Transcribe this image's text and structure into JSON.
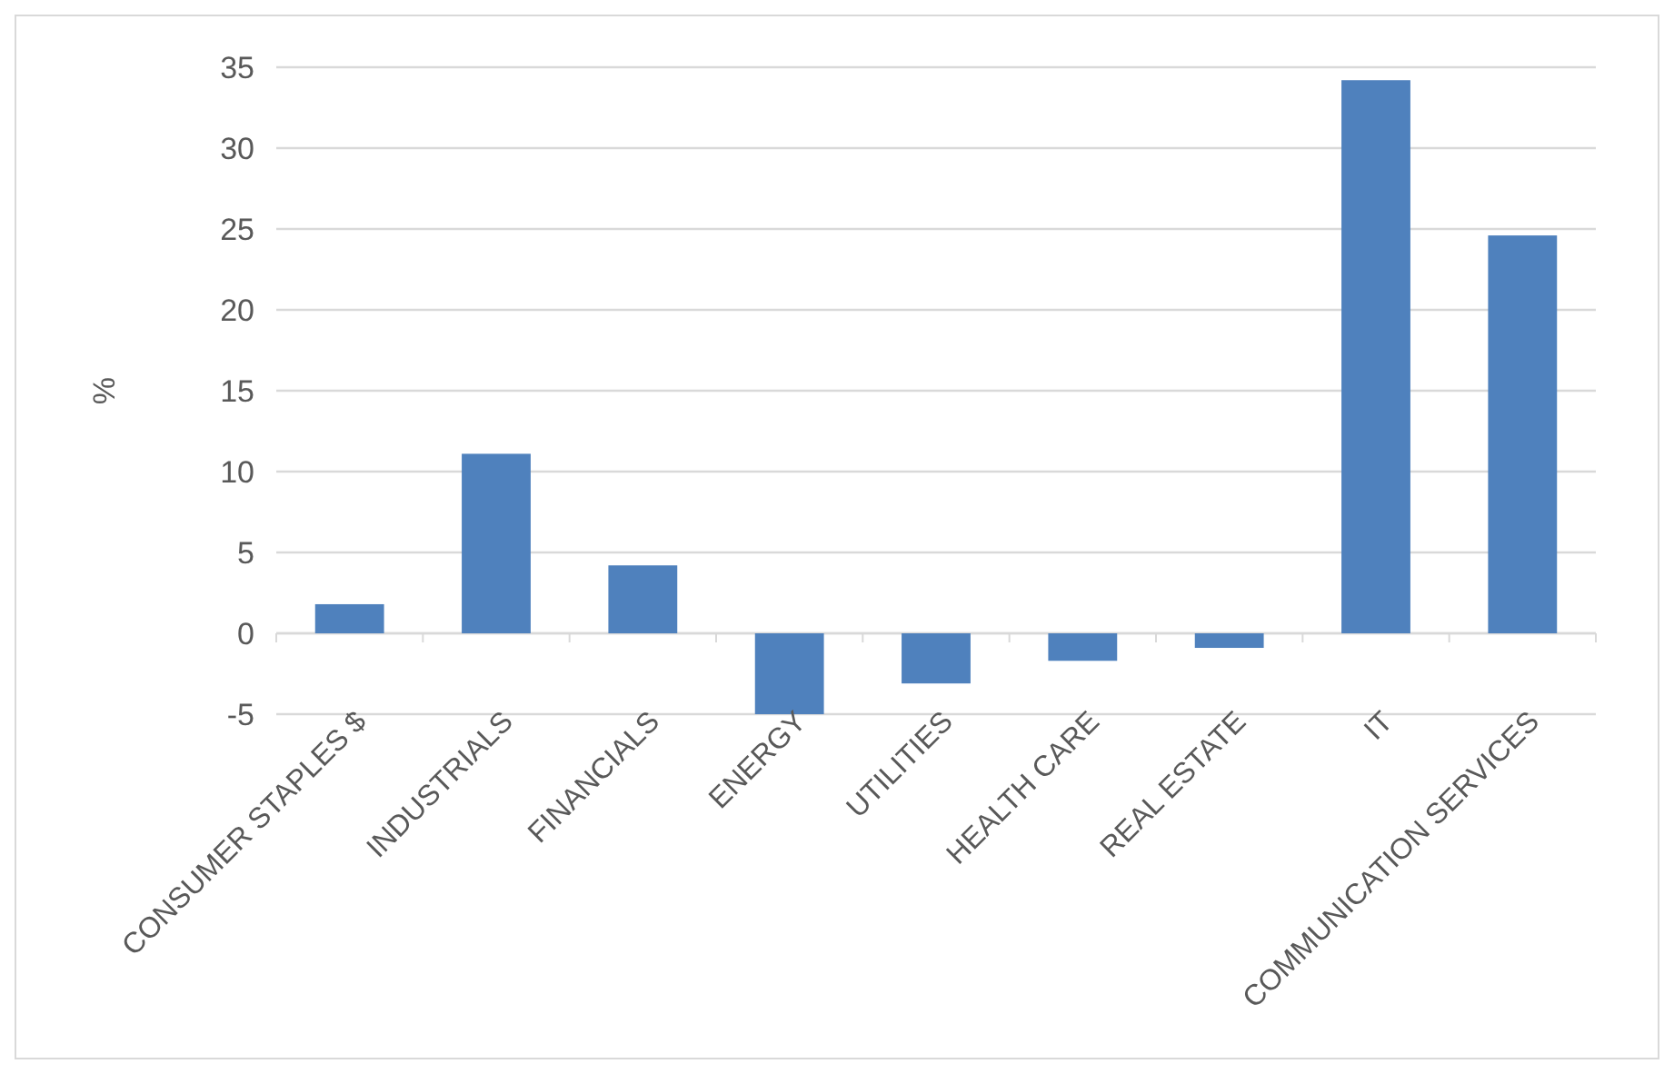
{
  "chart_data": {
    "type": "bar",
    "ylabel": "%",
    "categories": [
      "CONSUMER STAPLES $",
      "INDUSTRIALS",
      "FINANCIALS",
      "ENERGY",
      "UTILITIES",
      "HEALTH CARE",
      "REAL ESTATE",
      "IT",
      "COMMUNICATION SERVICES"
    ],
    "values": [
      1.8,
      11.1,
      4.2,
      -5,
      -3.1,
      -1.7,
      -0.9,
      34.2,
      24.6
    ],
    "color": "#4f81bd",
    "ylim": [
      -5,
      35
    ],
    "yticks": [
      -5,
      0,
      5,
      10,
      15,
      20,
      25,
      30,
      35
    ],
    "grid": "y"
  }
}
